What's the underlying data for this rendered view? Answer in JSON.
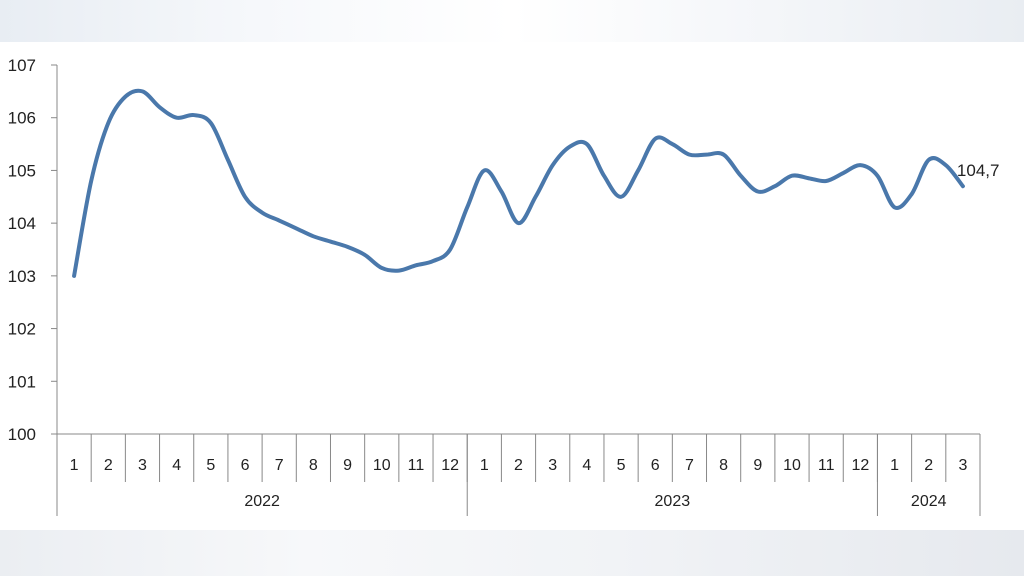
{
  "chart_data": {
    "type": "line",
    "title": "",
    "xlabel": "",
    "ylabel": "",
    "ylim": [
      100,
      107
    ],
    "yticks": [
      "100",
      "101",
      "102",
      "103",
      "104",
      "105",
      "106",
      "107"
    ],
    "categories": [
      "1",
      "2",
      "3",
      "4",
      "5",
      "6",
      "7",
      "8",
      "9",
      "10",
      "11",
      "12",
      "1",
      "2",
      "3",
      "4",
      "5",
      "6",
      "7",
      "8",
      "9",
      "10",
      "11",
      "12",
      "1",
      "2",
      "3"
    ],
    "years": [
      {
        "label": "2022",
        "count": 12
      },
      {
        "label": "2023",
        "count": 12
      },
      {
        "label": "2024",
        "count": 3
      }
    ],
    "x": [
      1,
      1.5,
      2,
      2.5,
      3,
      3.5,
      4,
      4.5,
      5,
      5.5,
      6,
      6.5,
      7,
      7.5,
      8,
      8.5,
      9,
      9.5,
      10,
      10.5,
      11,
      11.5,
      12,
      12.5,
      13,
      13.5,
      14,
      14.5,
      15,
      15.5,
      16,
      16.5,
      17,
      17.5,
      18,
      18.5,
      19,
      19.5,
      20,
      20.5,
      21,
      21.5,
      22,
      22.5,
      23,
      23.5,
      24,
      24.5,
      25,
      25.5,
      26,
      26.5,
      27
    ],
    "series": [
      {
        "values": [
          103.0,
          104.8,
          105.9,
          106.4,
          106.5,
          106.2,
          106.0,
          106.05,
          105.9,
          105.2,
          104.5,
          104.2,
          104.05,
          103.9,
          103.75,
          103.65,
          103.55,
          103.4,
          103.15,
          103.1,
          103.2,
          103.28,
          103.5,
          104.3,
          105.0,
          104.6,
          104.0,
          104.5,
          105.1,
          105.45,
          105.5,
          104.9,
          104.5,
          105.0,
          105.6,
          105.5,
          105.3,
          105.3,
          105.3,
          104.9,
          104.6,
          104.7,
          104.9,
          104.85,
          104.8,
          104.95,
          105.1,
          104.9,
          104.3,
          104.55,
          105.2,
          105.1,
          104.7
        ],
        "color": "#4a78ab"
      }
    ],
    "data_labels": [
      {
        "text": "104,7"
      }
    ],
    "grid": false
  }
}
